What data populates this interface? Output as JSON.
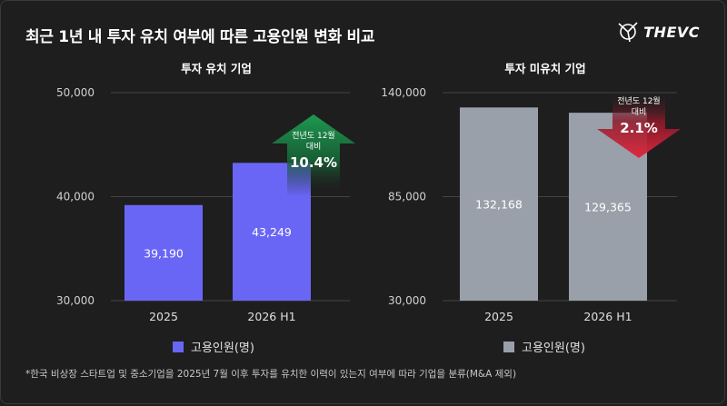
{
  "header": {
    "title": "최근 1년 내 투자 유치 여부에 따른 고용인원 변화 비교",
    "logo_text": "THEVC"
  },
  "footnote": "*한국 비상장 스타트업 및 중소기업을 2025년 7월 이후 투자를 유치한 이력이 있는지 여부에 따라 기업을 분류(M&A 제외)",
  "colors": {
    "invested_bar": "#6a66f5",
    "not_invested_bar": "#9aa0aa",
    "up_arrow": "#1e8f4a",
    "down_arrow": "#d9243a"
  },
  "chart_data": [
    {
      "type": "bar",
      "title": "투자 유치 기업",
      "categories": [
        "2025",
        "2026 H1"
      ],
      "series": [
        {
          "name": "고용인원(명)",
          "values": [
            39190,
            43249
          ]
        }
      ],
      "data_labels": [
        "39,190",
        "43,249"
      ],
      "y_ticks": [
        "30,000",
        "40,000",
        "50,000"
      ],
      "ylim": [
        30000,
        50000
      ],
      "legend": "bottom",
      "annotation": {
        "direction": "up",
        "line1": "전년도 12월",
        "line2": "대비",
        "value": "10.4%"
      }
    },
    {
      "type": "bar",
      "title": "투자 미유치 기업",
      "categories": [
        "2025",
        "2026 H1"
      ],
      "series": [
        {
          "name": "고용인원(명)",
          "values": [
            132168,
            129365
          ]
        }
      ],
      "data_labels": [
        "132,168",
        "129,365"
      ],
      "y_ticks": [
        "30,000",
        "85,000",
        "140,000"
      ],
      "ylim": [
        30000,
        140000
      ],
      "legend": "bottom",
      "annotation": {
        "direction": "down",
        "line1": "전년도 12월",
        "line2": "대비",
        "value": "2.1%"
      }
    }
  ]
}
